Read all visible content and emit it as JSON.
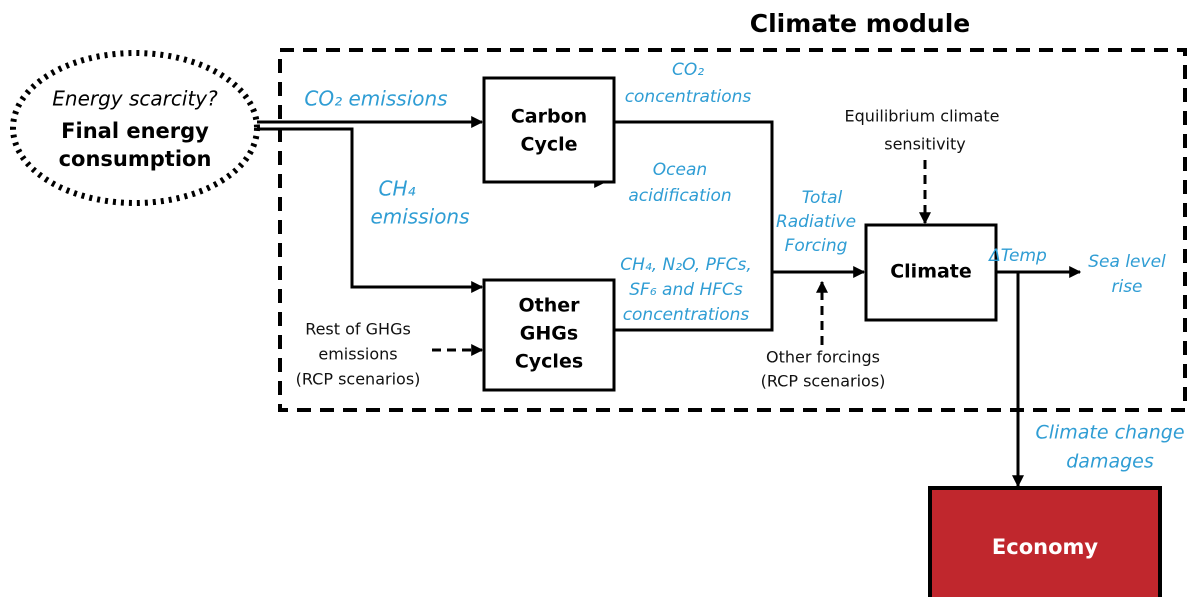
{
  "title": "Climate module",
  "source": {
    "question": "Energy scarcity?",
    "lines": [
      "Final energy",
      "consumption"
    ]
  },
  "nodes": [
    {
      "lines": [
        "Carbon",
        "Cycle"
      ]
    },
    {
      "lines": [
        "Other",
        "GHGs",
        "Cycles"
      ]
    },
    {
      "lines": [
        "Climate"
      ]
    },
    {
      "lines": [
        "Economy"
      ]
    }
  ],
  "flows": {
    "co2_emissions": "CO₂  emissions",
    "ch4_emissions": [
      "CH₄",
      "emissions"
    ],
    "co2_concentrations": [
      "CO₂",
      "concentrations"
    ],
    "ocean_acidification": [
      "Ocean",
      "acidification"
    ],
    "other_concentrations": [
      "CH₄, N₂O, PFCs,",
      "SF₆ and HFCs",
      "concentrations"
    ],
    "total_forcing": [
      "Total",
      "Radiative",
      "Forcing"
    ],
    "delta_temp": "ΔTemp",
    "sea_level": [
      "Sea level",
      "rise"
    ],
    "damages": [
      "Climate change",
      "damages"
    ]
  },
  "inputs": {
    "sensitivity": [
      "Equilibrium climate",
      "sensitivity"
    ],
    "rest_ghgs": [
      "Rest of GHGs",
      "emissions",
      "(RCP scenarios)"
    ],
    "other_forcings": [
      "Other forcings",
      "(RCP scenarios)"
    ]
  }
}
